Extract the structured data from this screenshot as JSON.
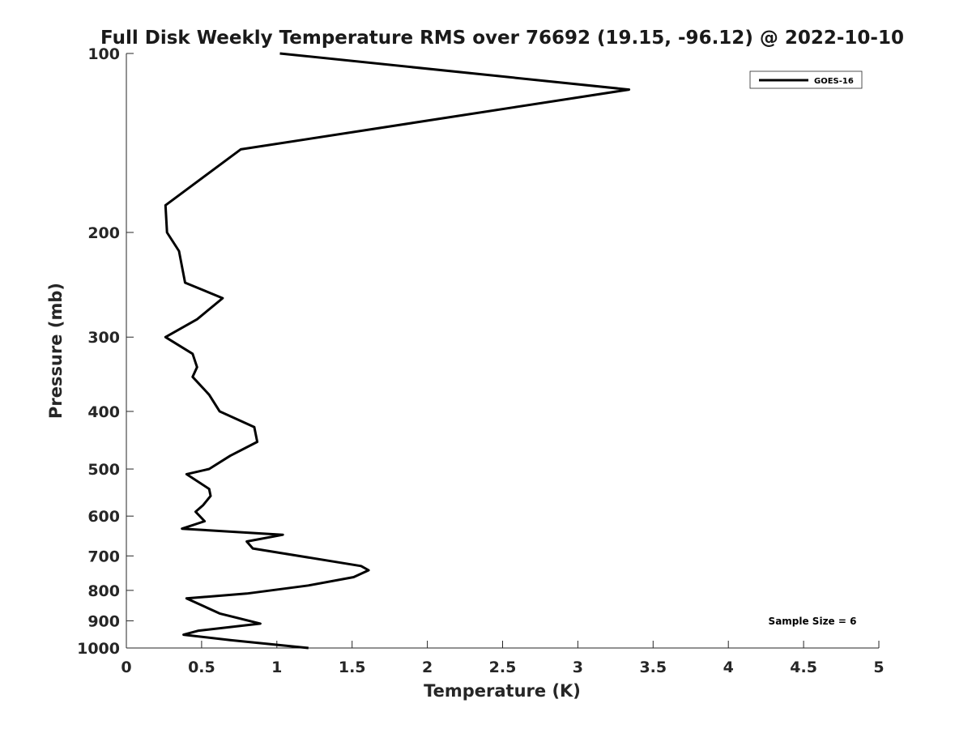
{
  "chart_data": {
    "type": "line",
    "title": "Full Disk Weekly Temperature RMS over 76692 (19.15, -96.12) @ 2022-10-10",
    "xlabel": "Temperature (K)",
    "ylabel": "Pressure (mb)",
    "xlim": [
      0,
      5
    ],
    "ylim": [
      100,
      1000
    ],
    "y_scale": "log",
    "y_reversed": true,
    "x_ticks": [
      "0",
      "0.5",
      "1",
      "1.5",
      "2",
      "2.5",
      "3",
      "3.5",
      "4",
      "4.5",
      "5"
    ],
    "y_ticks": [
      "100",
      "200",
      "300",
      "400",
      "500",
      "600",
      "700",
      "800",
      "900",
      "1000"
    ],
    "grid": false,
    "legend_position": "top-right",
    "series": [
      {
        "name": "GOES-16",
        "color": "#000000",
        "points": [
          [
            1.02,
            100
          ],
          [
            3.34,
            115
          ],
          [
            0.76,
            145
          ],
          [
            0.26,
            180
          ],
          [
            0.27,
            200
          ],
          [
            0.35,
            215
          ],
          [
            0.39,
            243
          ],
          [
            0.64,
            258
          ],
          [
            0.47,
            280
          ],
          [
            0.26,
            300
          ],
          [
            0.44,
            320
          ],
          [
            0.47,
            337
          ],
          [
            0.44,
            350
          ],
          [
            0.55,
            375
          ],
          [
            0.62,
            400
          ],
          [
            0.85,
            425
          ],
          [
            0.87,
            450
          ],
          [
            0.69,
            475
          ],
          [
            0.55,
            500
          ],
          [
            0.4,
            510
          ],
          [
            0.55,
            540
          ],
          [
            0.56,
            555
          ],
          [
            0.51,
            575
          ],
          [
            0.46,
            590
          ],
          [
            0.52,
            612
          ],
          [
            0.37,
            630
          ],
          [
            1.04,
            645
          ],
          [
            0.8,
            662
          ],
          [
            0.84,
            680
          ],
          [
            1.56,
            728
          ],
          [
            1.61,
            740
          ],
          [
            1.51,
            760
          ],
          [
            1.21,
            785
          ],
          [
            0.8,
            810
          ],
          [
            0.4,
            825
          ],
          [
            0.52,
            852
          ],
          [
            0.62,
            875
          ],
          [
            0.89,
            910
          ],
          [
            0.48,
            935
          ],
          [
            0.38,
            950
          ],
          [
            0.69,
            970
          ],
          [
            1.21,
            1000
          ]
        ]
      }
    ],
    "annotation": "Sample Size = 6"
  }
}
